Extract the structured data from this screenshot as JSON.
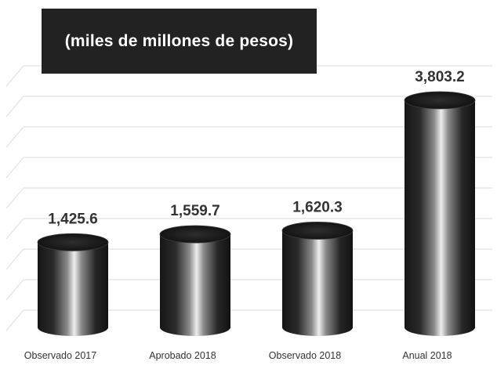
{
  "chart_data": {
    "type": "bar",
    "subtitle": "(miles de millones de pesos)",
    "categories": [
      "Observado 2017",
      "Aprobado 2018",
      "Observado 2018",
      "Anual 2018"
    ],
    "values": [
      1425.6,
      1559.7,
      1620.3,
      3803.2
    ],
    "value_labels": [
      "1,425.6",
      "1,559.7",
      "1,620.3",
      "3,803.2"
    ],
    "grid": true,
    "style": "3d-cylinder",
    "colors": {
      "bar_dark": "#1a1a1a",
      "bar_highlight": "#e8e8e8",
      "grid": "#e2e2e2",
      "title_bg": "#222222",
      "label": "#333333"
    }
  }
}
